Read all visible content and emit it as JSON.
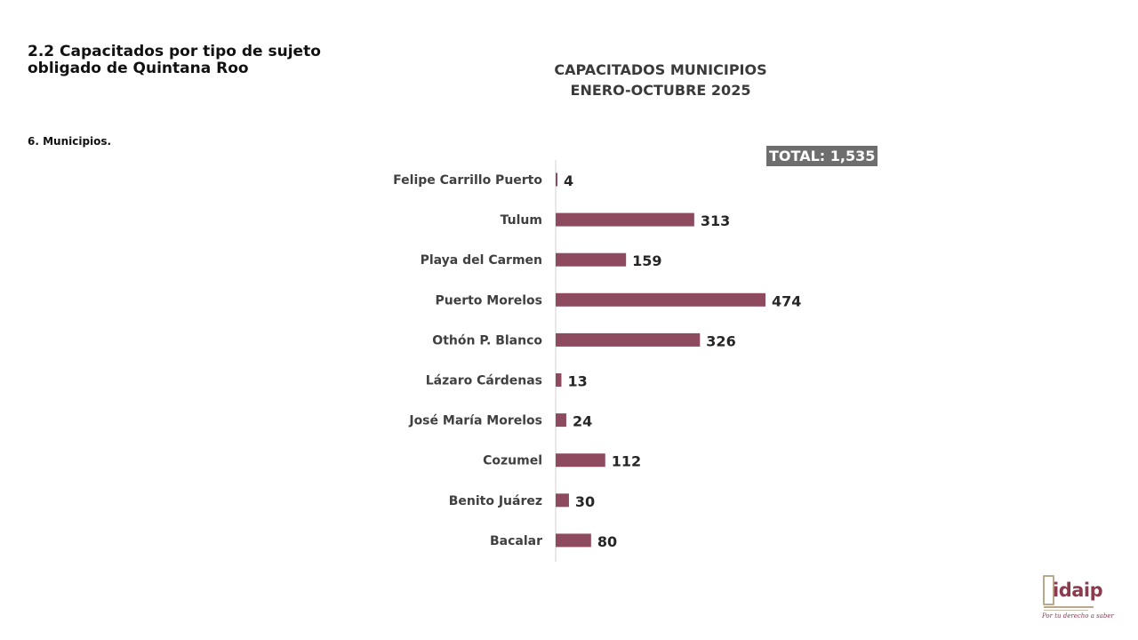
{
  "heading": "2.2 Capacitados por tipo de sujeto obligado de Quintana Roo",
  "subheading": "6. Municipios.",
  "total_label": "TOTAL: 1,535",
  "logo": {
    "icon": "idaip-logo-icon",
    "text": "idaip",
    "slogan": "Por tu derecho a saber"
  },
  "colors": {
    "bar": "#8e4a5e",
    "axis": "#d0d0d0",
    "badge": "#6e6e6e"
  },
  "chart_data": {
    "type": "bar",
    "orientation": "horizontal",
    "title_lines": [
      "CAPACITADOS MUNICIPIOS",
      "ENERO-OCTUBRE 2025"
    ],
    "categories": [
      "Felipe Carrillo Puerto",
      "Tulum",
      "Playa del Carmen",
      "Puerto Morelos",
      "Othón P. Blanco",
      "Lázaro Cárdenas",
      "José María Morelos",
      "Cozumel",
      "Benito Juárez",
      "Bacalar"
    ],
    "values": [
      4,
      313,
      159,
      474,
      326,
      13,
      24,
      112,
      30,
      80
    ],
    "xlim": [
      0,
      474
    ],
    "grid": false,
    "legend": "none",
    "data_labels": true
  }
}
